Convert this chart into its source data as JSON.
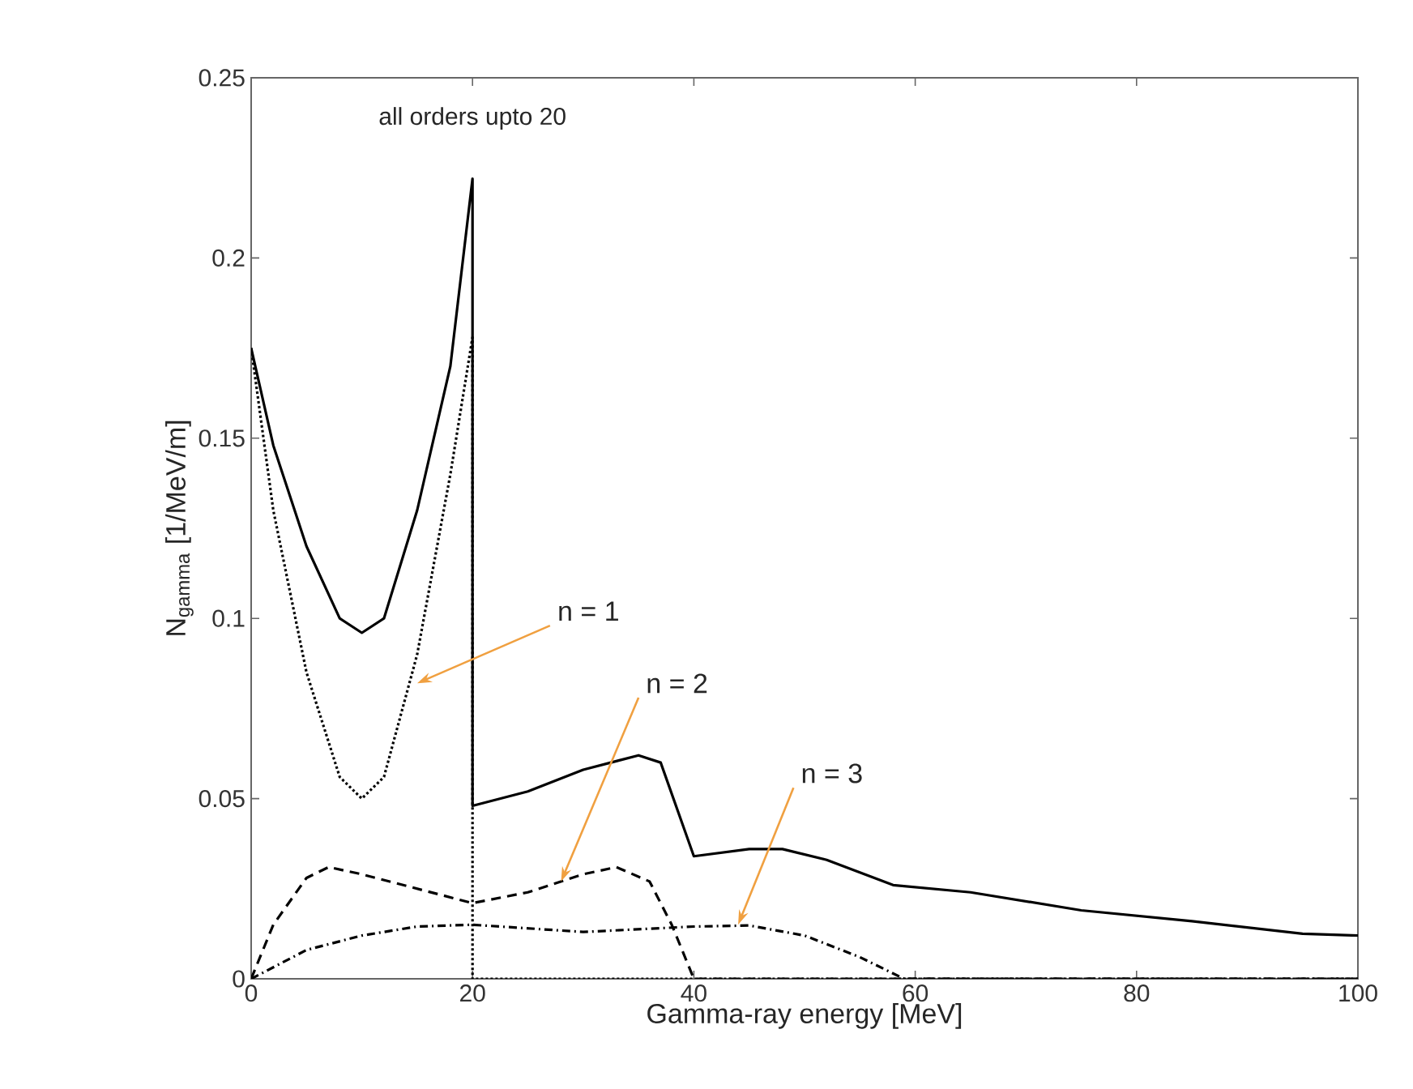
{
  "chart_data": {
    "type": "line",
    "xlabel": "Gamma-ray energy [MeV]",
    "ylabel": "N$_{gamma}$ [1/MeV/m]",
    "xlim": [
      0,
      100
    ],
    "ylim": [
      0,
      0.25
    ],
    "xticks": [
      0,
      20,
      40,
      60,
      80,
      100
    ],
    "yticks": [
      0,
      0.05,
      0.1,
      0.15,
      0.2,
      0.25
    ],
    "grid": false,
    "series": [
      {
        "color": "#000000",
        "line_style": "solid",
        "x": [
          0,
          2,
          5,
          8,
          10,
          12,
          15,
          18,
          20,
          20,
          25,
          30,
          35,
          37,
          40,
          45,
          48,
          52,
          58,
          65,
          75,
          85,
          95,
          100
        ],
        "values": [
          0.175,
          0.148,
          0.12,
          0.1,
          0.096,
          0.1,
          0.13,
          0.17,
          0.222,
          0.048,
          0.052,
          0.058,
          0.062,
          0.06,
          0.034,
          0.036,
          0.036,
          0.033,
          0.026,
          0.024,
          0.019,
          0.016,
          0.0125,
          0.012
        ]
      },
      {
        "color": "#000000",
        "line_style": "dotted",
        "x": [
          0,
          2,
          5,
          8,
          10,
          12,
          15,
          18,
          20,
          20,
          40,
          60,
          80,
          100
        ],
        "values": [
          0.175,
          0.13,
          0.085,
          0.056,
          0.05,
          0.056,
          0.09,
          0.14,
          0.178,
          0,
          0,
          0,
          0,
          0
        ]
      },
      {
        "color": "#000000",
        "line_style": "dashed",
        "x": [
          0,
          2,
          5,
          7,
          10,
          15,
          20,
          25,
          30,
          33,
          36,
          38,
          40,
          60,
          80,
          100
        ],
        "values": [
          0,
          0.015,
          0.028,
          0.031,
          0.029,
          0.025,
          0.021,
          0.024,
          0.029,
          0.031,
          0.027,
          0.015,
          0,
          0,
          0,
          0
        ]
      },
      {
        "color": "#000000",
        "line_style": "dashdot",
        "x": [
          0,
          5,
          10,
          15,
          20,
          30,
          40,
          45,
          50,
          55,
          59,
          80,
          100
        ],
        "values": [
          0,
          0.008,
          0.012,
          0.0145,
          0.015,
          0.013,
          0.0145,
          0.0148,
          0.012,
          0.006,
          0,
          0,
          0
        ]
      }
    ],
    "annotations": [
      {
        "text": "all orders upto 20",
        "x": 20,
        "y": 0.222
      },
      {
        "text": "n = 1",
        "x": 15,
        "y": 0.082
      },
      {
        "text": "n = 2",
        "x": 28,
        "y": 0.027
      },
      {
        "text": "n = 3",
        "x": 44,
        "y": 0.015
      }
    ]
  }
}
